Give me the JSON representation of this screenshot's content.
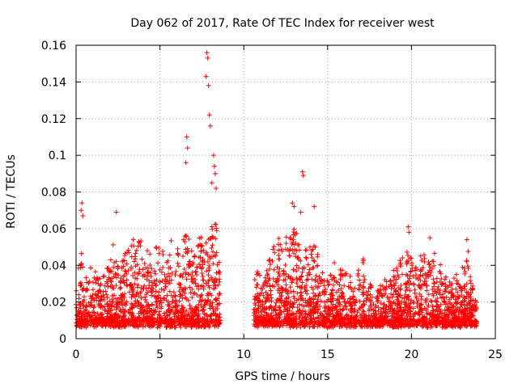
{
  "chart_data": {
    "type": "scatter",
    "title": "Day 062 of 2017, Rate Of TEC Index for receiver west",
    "xlabel": "GPS time / hours",
    "ylabel": "ROTI / TECUs",
    "xlim": [
      0,
      25
    ],
    "ylim": [
      0,
      0.16
    ],
    "x_ticks": [
      0,
      5,
      10,
      15,
      20,
      25
    ],
    "y_ticks": [
      0,
      0.02,
      0.04,
      0.06,
      0.08,
      0.1,
      0.12,
      0.14,
      0.16
    ],
    "x_tick_labels": [
      "0",
      "5",
      "10",
      "15",
      "20",
      "25"
    ],
    "y_tick_labels": [
      "0",
      "0.02",
      "0.04",
      "0.06",
      "0.08",
      "0.1",
      "0.12",
      "0.14",
      "0.16"
    ],
    "grid": true,
    "marker": "+",
    "color": "#ff0000",
    "data_gaps_hours": [
      [
        8.6,
        10.6
      ]
    ],
    "outlier_points": [
      {
        "x": 0.35,
        "y": 0.074
      },
      {
        "x": 0.3,
        "y": 0.07
      },
      {
        "x": 0.4,
        "y": 0.067
      },
      {
        "x": 2.4,
        "y": 0.069
      },
      {
        "x": 6.6,
        "y": 0.11
      },
      {
        "x": 6.65,
        "y": 0.104
      },
      {
        "x": 6.55,
        "y": 0.096
      },
      {
        "x": 7.8,
        "y": 0.156
      },
      {
        "x": 7.85,
        "y": 0.153
      },
      {
        "x": 7.75,
        "y": 0.143
      },
      {
        "x": 7.9,
        "y": 0.138
      },
      {
        "x": 7.95,
        "y": 0.122
      },
      {
        "x": 8.0,
        "y": 0.116
      },
      {
        "x": 8.2,
        "y": 0.1
      },
      {
        "x": 8.25,
        "y": 0.094
      },
      {
        "x": 8.3,
        "y": 0.09
      },
      {
        "x": 8.1,
        "y": 0.085
      },
      {
        "x": 8.35,
        "y": 0.082
      },
      {
        "x": 12.9,
        "y": 0.074
      },
      {
        "x": 13.0,
        "y": 0.072
      },
      {
        "x": 13.5,
        "y": 0.091
      },
      {
        "x": 13.55,
        "y": 0.089
      },
      {
        "x": 14.2,
        "y": 0.072
      },
      {
        "x": 13.4,
        "y": 0.069
      },
      {
        "x": 19.8,
        "y": 0.061
      },
      {
        "x": 19.85,
        "y": 0.058
      },
      {
        "x": 21.1,
        "y": 0.055
      },
      {
        "x": 23.3,
        "y": 0.054
      }
    ]
  }
}
